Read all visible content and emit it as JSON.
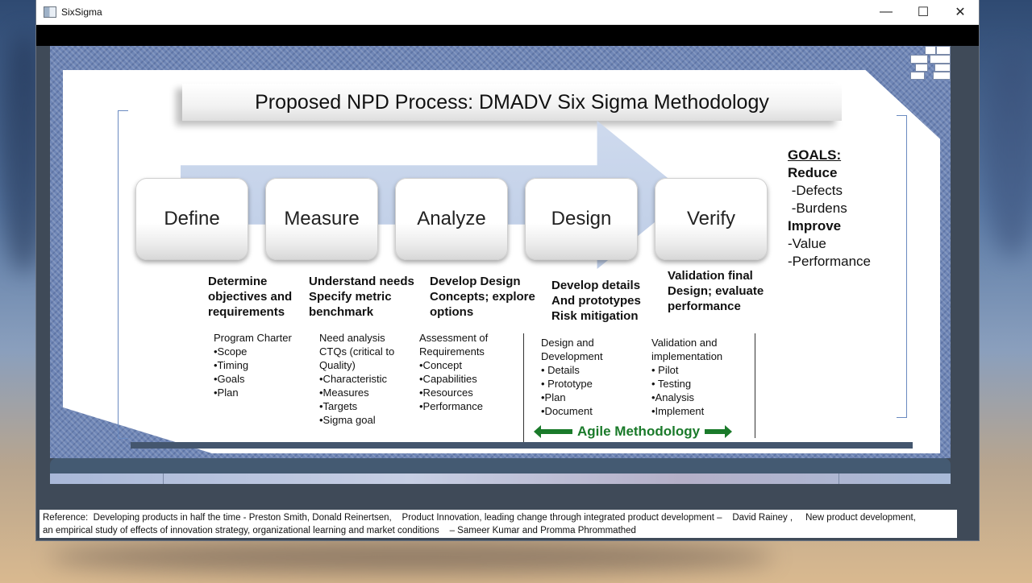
{
  "window": {
    "title": "SixSigma",
    "controls": {
      "minimize": "—",
      "maximize": "☐",
      "close": "✕"
    }
  },
  "slide": {
    "title": "Proposed NPD Process: DMADV Six Sigma Methodology",
    "phases": [
      "Define",
      "Measure",
      "Analyze",
      "Design",
      "Verify"
    ],
    "descriptions": [
      "Determine\nobjectives and\nrequirements",
      "Understand needs\nSpecify metric\nbenchmark",
      "Develop Design\nConcepts; explore\noptions",
      "Develop details\nAnd prototypes\nRisk mitigation",
      "Validation final\nDesign; evaluate\nperformance"
    ],
    "details": [
      "Program Charter\n•Scope\n•Timing\n•Goals\n•Plan",
      "Need analysis\nCTQs (critical to\nQuality)\n•Characteristic\n•Measures\n•Targets\n•Sigma goal",
      "Assessment of\nRequirements\n•Concept\n•Capabilities\n•Resources\n•Performance",
      "Design and\nDevelopment\n• Details\n• Prototype\n•Plan\n•Document",
      "Validation and\nimplementation\n• Pilot\n• Testing\n•Analysis\n•Implement"
    ],
    "goals": {
      "heading": "GOALS:",
      "lines": [
        "Reduce",
        " -Defects",
        " -Burdens",
        "Improve",
        "-Value",
        "-Performance"
      ]
    },
    "agile_label": "Agile Methodology"
  },
  "reference": {
    "line1": "Reference:  Developing products in half the time - Preston Smith, Donald Reinertsen,    Product Innovation, leading change through integrated product development –    David Rainey ,     New product development,",
    "line2": "an empirical study of effects of innovation strategy, organizational learning and market conditions    – Sameer Kumar and Promma Phrommathed"
  }
}
